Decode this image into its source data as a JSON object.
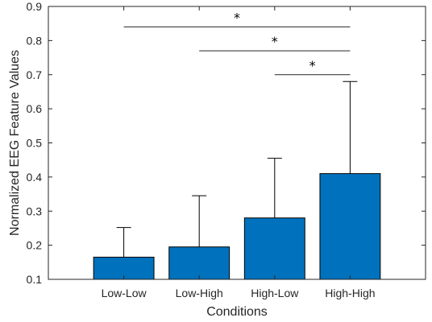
{
  "chart_data": {
    "type": "bar",
    "title": "",
    "xlabel": "Conditions",
    "ylabel": "Normalized EEG Feature Values",
    "categories": [
      "Low-Low",
      "Low-High",
      "High-Low",
      "High-High"
    ],
    "values": [
      0.165,
      0.195,
      0.28,
      0.41
    ],
    "error_upper": [
      0.252,
      0.345,
      0.455,
      0.68
    ],
    "ylim": [
      0.1,
      0.9
    ],
    "yticks": [
      0.1,
      0.2,
      0.3,
      0.4,
      0.5,
      0.6,
      0.7,
      0.8,
      0.9
    ],
    "ytick_labels": [
      "0.1",
      "0.2",
      "0.3",
      "0.4",
      "0.5",
      "0.6",
      "0.7",
      "0.8",
      "0.9"
    ],
    "grid": false,
    "bar_color": "#0072BD",
    "significance": [
      {
        "from": "Low-Low",
        "to": "High-High",
        "y": 0.84,
        "label": "*"
      },
      {
        "from": "Low-High",
        "to": "High-High",
        "y": 0.77,
        "label": "*"
      },
      {
        "from": "High-Low",
        "to": "High-High",
        "y": 0.7,
        "label": "*"
      }
    ]
  }
}
